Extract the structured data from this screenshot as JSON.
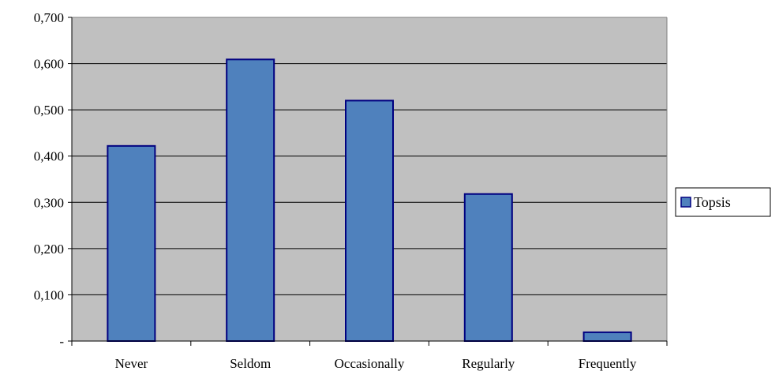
{
  "chart_data": {
    "type": "bar",
    "categories": [
      "Never",
      "Seldom",
      "Occasionally",
      "Regularly",
      "Frequently"
    ],
    "series": [
      {
        "name": "Topsis",
        "values": [
          0.422,
          0.609,
          0.52,
          0.318,
          0.019
        ]
      }
    ],
    "ylim": [
      0,
      0.7
    ],
    "yticks": [
      "-",
      "0,100",
      "0,200",
      "0,300",
      "0,400",
      "0,500",
      "0,600",
      "0,700"
    ],
    "grid": true,
    "legend": "right",
    "colors": {
      "plot_background": "#c0c0c0",
      "bar_fill": "#4f81bd",
      "bar_stroke": "#000080",
      "gridline": "#000000"
    }
  }
}
